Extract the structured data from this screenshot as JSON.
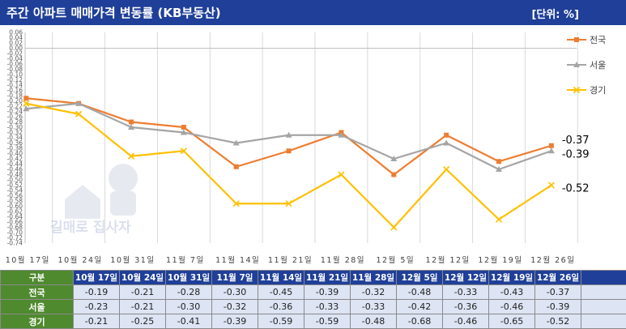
{
  "title": "주간 아파트 매매가격 변동률 (KB부동산)",
  "unit_label": "[단위: %]",
  "watermark": "집살까 내 집 마련 길매로 집사자",
  "chart_data": {
    "type": "line",
    "categories": [
      "10월 17일",
      "10월 24일",
      "10월 31일",
      "11월 7일",
      "11월 14일",
      "11월 21일",
      "11월 28일",
      "12월 5일",
      "12월 12일",
      "12월 19일",
      "12월 26일"
    ],
    "ylim": [
      -0.74,
      0.06
    ],
    "y_tick_step": 0.02,
    "grid": "vertical",
    "legend_position": "right",
    "series": [
      {
        "name": "전국",
        "color": "#ed7d31",
        "marker": "square",
        "values": [
          -0.19,
          -0.21,
          -0.28,
          -0.3,
          -0.45,
          -0.39,
          -0.32,
          -0.48,
          -0.33,
          -0.43,
          -0.37
        ]
      },
      {
        "name": "서울",
        "color": "#a5a5a5",
        "marker": "triangle",
        "values": [
          -0.23,
          -0.21,
          -0.3,
          -0.32,
          -0.36,
          -0.33,
          -0.33,
          -0.42,
          -0.36,
          -0.46,
          -0.39
        ]
      },
      {
        "name": "경기",
        "color": "#ffc000",
        "marker": "x",
        "values": [
          -0.21,
          -0.25,
          -0.41,
          -0.39,
          -0.59,
          -0.59,
          -0.48,
          -0.68,
          -0.46,
          -0.65,
          -0.52
        ]
      }
    ],
    "end_labels": [
      "-0.37",
      "-0.39",
      "-0.52"
    ]
  },
  "table": {
    "corner": "구분",
    "headers": [
      "10월 17일",
      "10월 24일",
      "10월 31일",
      "11월 7일",
      "11월 14일",
      "11월 21일",
      "11월 28일",
      "12월 5일",
      "12월 12일",
      "12월 19일",
      "12월 26일"
    ],
    "rows": [
      {
        "label": "전국",
        "values": [
          "-0.19",
          "-0.21",
          "-0.28",
          "-0.30",
          "-0.45",
          "-0.39",
          "-0.32",
          "-0.48",
          "-0.33",
          "-0.43",
          "-0.37"
        ]
      },
      {
        "label": "서울",
        "values": [
          "-0.23",
          "-0.21",
          "-0.30",
          "-0.32",
          "-0.36",
          "-0.33",
          "-0.33",
          "-0.42",
          "-0.36",
          "-0.46",
          "-0.39"
        ]
      },
      {
        "label": "경기",
        "values": [
          "-0.21",
          "-0.25",
          "-0.41",
          "-0.39",
          "-0.59",
          "-0.59",
          "-0.48",
          "-0.68",
          "-0.46",
          "-0.65",
          "-0.52"
        ]
      }
    ]
  }
}
